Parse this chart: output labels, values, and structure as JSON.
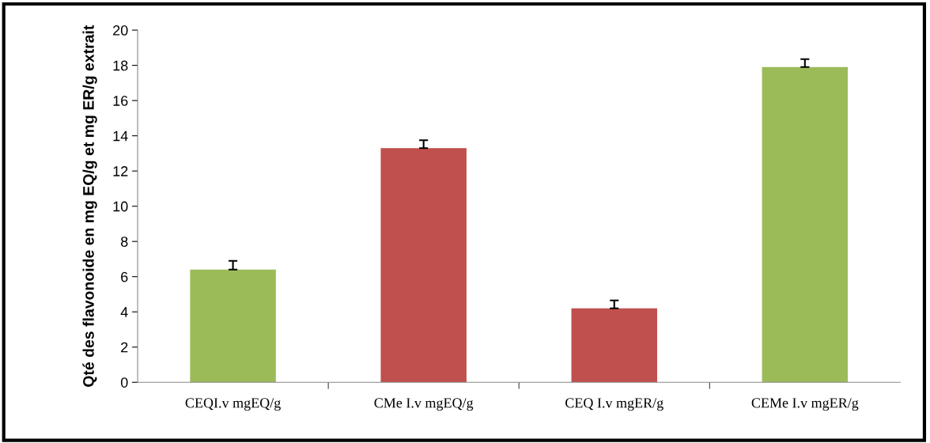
{
  "chart_data": {
    "type": "bar",
    "ylabel": "Qté des flavonoide en mg EQ/g et mg ER/g extrait",
    "categories": [
      "CEQI.v mgEQ/g",
      "CMe I.v mgEQ/g",
      "CEQ I.v mgER/g",
      "CEMe I.v mgER/g"
    ],
    "values": [
      6.4,
      13.3,
      4.2,
      17.9
    ],
    "colors": [
      "#9bbb59",
      "#c0504d",
      "#c0504d",
      "#9bbb59"
    ],
    "errors": [
      [
        6.4,
        6.9
      ],
      [
        13.3,
        13.75
      ],
      [
        4.2,
        4.65
      ],
      [
        17.9,
        18.35
      ]
    ],
    "ylim": [
      0,
      20
    ],
    "yticks": [
      0,
      2,
      4,
      6,
      8,
      10,
      12,
      14,
      16,
      18,
      20
    ],
    "grid": false,
    "legend": false
  }
}
